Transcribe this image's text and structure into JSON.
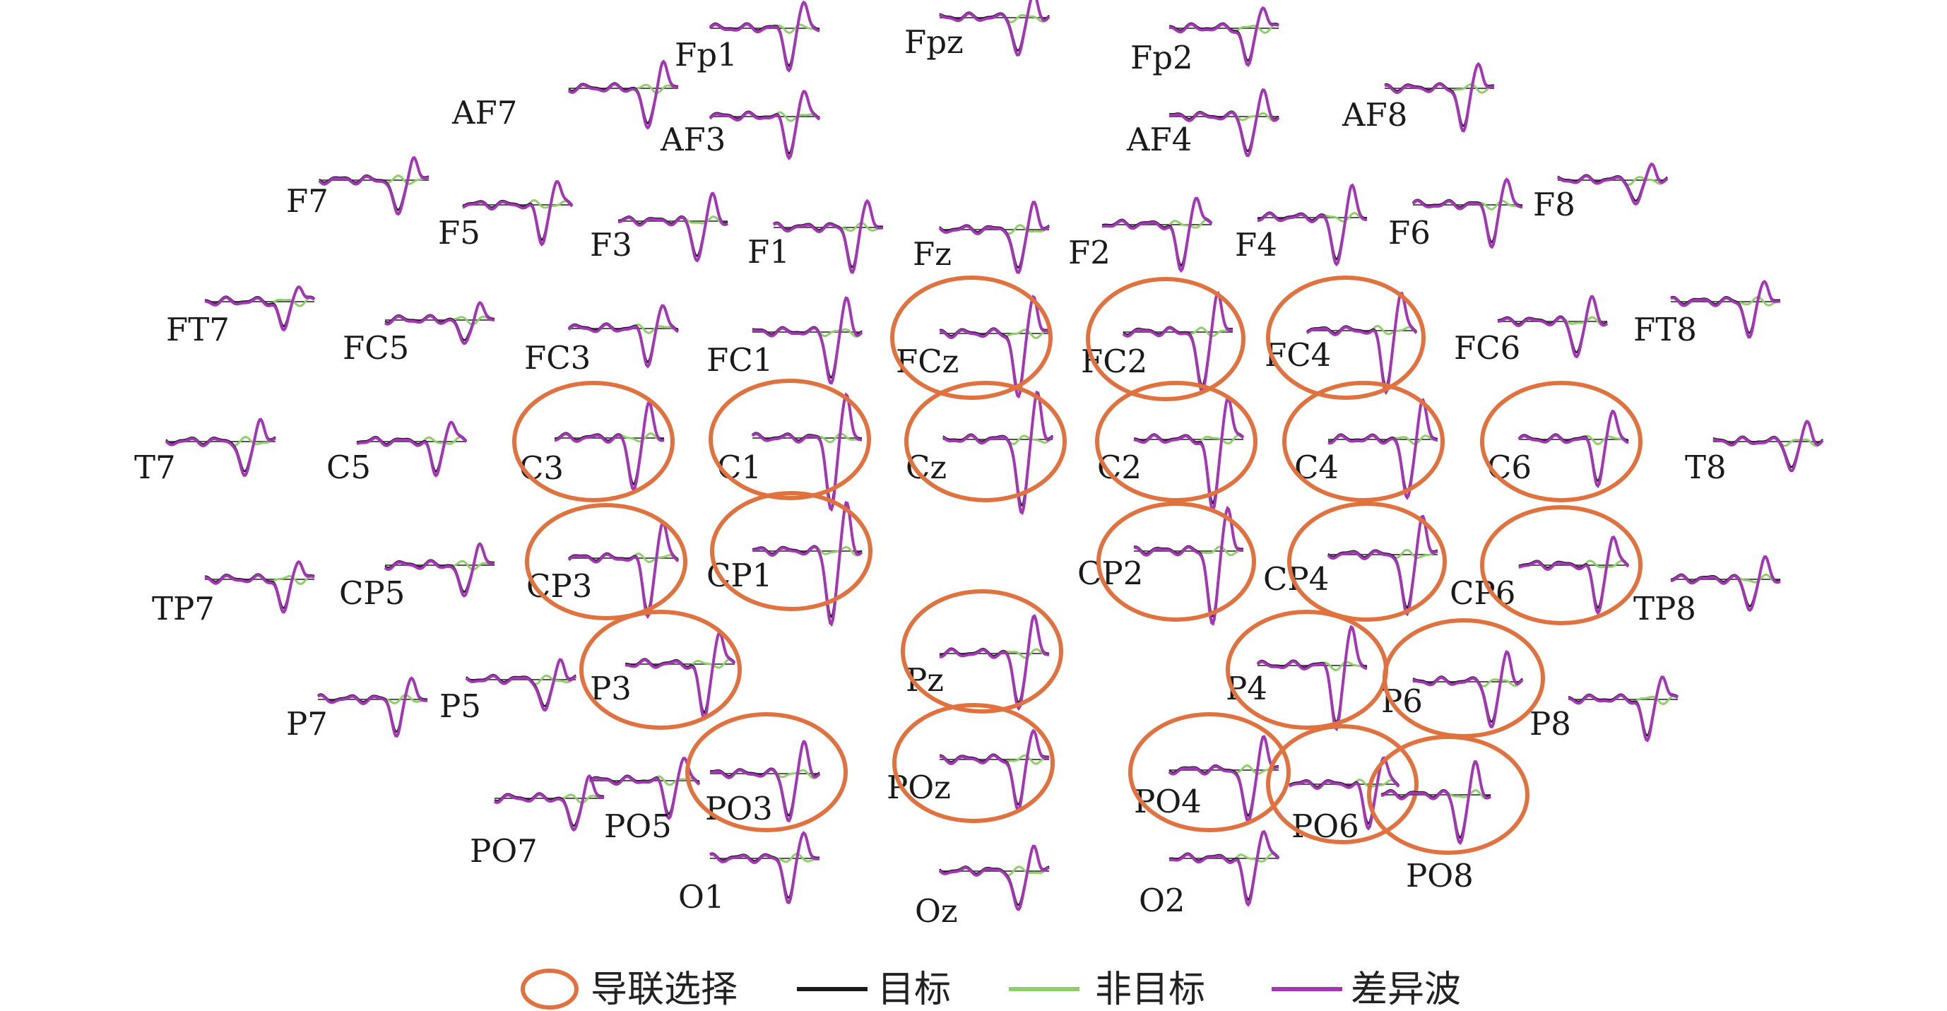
{
  "colors": {
    "target": "#1a1a1a",
    "nontarget": "#8fcf6a",
    "difference": "#a236b4",
    "selection": "#e07240"
  },
  "legend": {
    "selection_label": "导联选择",
    "target_label": "目标",
    "nontarget_label": "非目标",
    "difference_label": "差异波"
  },
  "electrodes": [
    {
      "id": "Fp1",
      "selected": false,
      "amp": 0.9
    },
    {
      "id": "Fpz",
      "selected": false,
      "amp": 0.9
    },
    {
      "id": "Fp2",
      "selected": false,
      "amp": 0.9
    },
    {
      "id": "AF7",
      "selected": false,
      "amp": 1.0
    },
    {
      "id": "AF3",
      "selected": false,
      "amp": 0.9
    },
    {
      "id": "AF4",
      "selected": false,
      "amp": 0.9
    },
    {
      "id": "AF8",
      "selected": false,
      "amp": 1.0
    },
    {
      "id": "F7",
      "selected": false,
      "amp": 0.9
    },
    {
      "id": "F5",
      "selected": false,
      "amp": 0.9
    },
    {
      "id": "F3",
      "selected": false,
      "amp": 0.9
    },
    {
      "id": "F1",
      "selected": false,
      "amp": 1.0
    },
    {
      "id": "Fz",
      "selected": false,
      "amp": 1.1
    },
    {
      "id": "F2",
      "selected": false,
      "amp": 1.1
    },
    {
      "id": "F4",
      "selected": false,
      "amp": 1.1
    },
    {
      "id": "F6",
      "selected": false,
      "amp": 0.9
    },
    {
      "id": "F8",
      "selected": false,
      "amp": 0.6
    },
    {
      "id": "FT7",
      "selected": false,
      "amp": 0.7
    },
    {
      "id": "FC5",
      "selected": false,
      "amp": 0.6
    },
    {
      "id": "FC3",
      "selected": false,
      "amp": 0.8
    },
    {
      "id": "FC1",
      "selected": false,
      "amp": 1.2
    },
    {
      "id": "FCz",
      "selected": true,
      "amp": 1.5
    },
    {
      "id": "FC2",
      "selected": true,
      "amp": 1.5
    },
    {
      "id": "FC4",
      "selected": true,
      "amp": 1.4
    },
    {
      "id": "FC6",
      "selected": false,
      "amp": 0.8
    },
    {
      "id": "FT8",
      "selected": false,
      "amp": 0.8
    },
    {
      "id": "T7",
      "selected": false,
      "amp": 0.9
    },
    {
      "id": "C5",
      "selected": false,
      "amp": 0.8
    },
    {
      "id": "C3",
      "selected": true,
      "amp": 1.2
    },
    {
      "id": "C1",
      "selected": true,
      "amp": 1.6
    },
    {
      "id": "Cz",
      "selected": true,
      "amp": 1.8
    },
    {
      "id": "C2",
      "selected": true,
      "amp": 1.7
    },
    {
      "id": "C4",
      "selected": true,
      "amp": 1.4
    },
    {
      "id": "C6",
      "selected": true,
      "amp": 1.0
    },
    {
      "id": "T8",
      "selected": false,
      "amp": 0.7
    },
    {
      "id": "TP7",
      "selected": false,
      "amp": 0.8
    },
    {
      "id": "CP5",
      "selected": false,
      "amp": 0.8
    },
    {
      "id": "CP3",
      "selected": true,
      "amp": 1.3
    },
    {
      "id": "CP1",
      "selected": true,
      "amp": 1.7
    },
    {
      "id": "CP2",
      "selected": true,
      "amp": 1.7
    },
    {
      "id": "CP4",
      "selected": true,
      "amp": 1.5
    },
    {
      "id": "CP6",
      "selected": true,
      "amp": 1.1
    },
    {
      "id": "TP8",
      "selected": false,
      "amp": 0.7
    },
    {
      "id": "P7",
      "selected": false,
      "amp": 0.8
    },
    {
      "id": "P5",
      "selected": false,
      "amp": 0.8
    },
    {
      "id": "P3",
      "selected": true,
      "amp": 1.3
    },
    {
      "id": "Pz",
      "selected": true,
      "amp": 1.3
    },
    {
      "id": "P4",
      "selected": true,
      "amp": 1.4
    },
    {
      "id": "P6",
      "selected": true,
      "amp": 1.1
    },
    {
      "id": "P8",
      "selected": false,
      "amp": 1.0
    },
    {
      "id": "PO7",
      "selected": false,
      "amp": 0.8
    },
    {
      "id": "PO5",
      "selected": false,
      "amp": 0.8
    },
    {
      "id": "PO3",
      "selected": true,
      "amp": 1.1
    },
    {
      "id": "POz",
      "selected": true,
      "amp": 1.2
    },
    {
      "id": "PO4",
      "selected": true,
      "amp": 1.3
    },
    {
      "id": "PO6",
      "selected": true,
      "amp": 1.0
    },
    {
      "id": "PO8",
      "selected": true,
      "amp": 1.1
    },
    {
      "id": "O1",
      "selected": false,
      "amp": 1.0
    },
    {
      "id": "Oz",
      "selected": false,
      "amp": 1.0
    },
    {
      "id": "O2",
      "selected": false,
      "amp": 1.1
    }
  ]
}
